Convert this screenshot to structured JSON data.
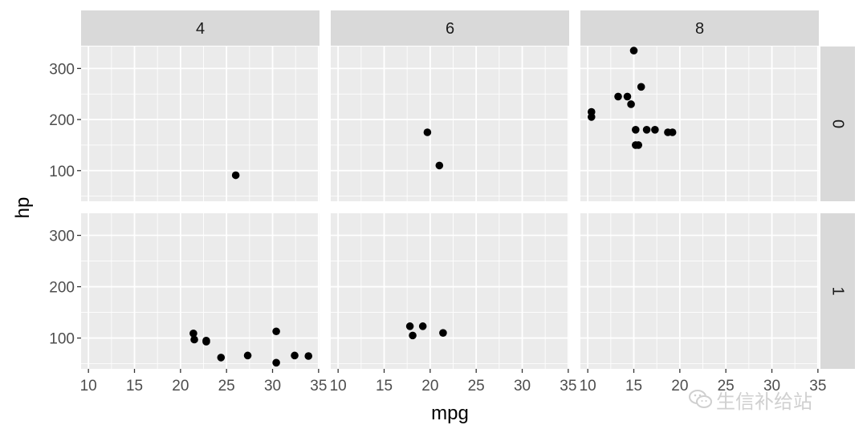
{
  "chart_data": {
    "type": "scatter",
    "facet_layout": "grid",
    "column_facets": [
      "4",
      "6",
      "8"
    ],
    "row_facets": [
      "0",
      "1"
    ],
    "xlabel": "mpg",
    "ylabel": "hp",
    "xlim": [
      9.2,
      35.1
    ],
    "ylim": [
      40,
      343
    ],
    "x_ticks": [
      10,
      15,
      20,
      25,
      30,
      35
    ],
    "x_tick_labels": [
      "10",
      "15",
      "20",
      "25",
      "30",
      "35"
    ],
    "y_ticks": [
      100,
      200,
      300
    ],
    "y_tick_labels": [
      "100",
      "200",
      "300"
    ],
    "grid": true,
    "point_color": "#000000",
    "panel_background": "#ebebeb",
    "strip_background": "#d9d9d9",
    "panels": [
      {
        "row": "0",
        "col": "4",
        "points": [
          [
            26.0,
            91
          ]
        ]
      },
      {
        "row": "0",
        "col": "6",
        "points": [
          [
            19.7,
            175
          ],
          [
            21.0,
            110
          ]
        ]
      },
      {
        "row": "0",
        "col": "8",
        "points": [
          [
            10.4,
            215
          ],
          [
            10.4,
            205
          ],
          [
            13.3,
            245
          ],
          [
            14.3,
            245
          ],
          [
            14.7,
            230
          ],
          [
            15.0,
            335
          ],
          [
            15.2,
            180
          ],
          [
            15.2,
            150
          ],
          [
            15.5,
            150
          ],
          [
            15.8,
            264
          ],
          [
            16.4,
            180
          ],
          [
            17.3,
            180
          ],
          [
            18.7,
            175
          ],
          [
            19.2,
            175
          ]
        ]
      },
      {
        "row": "1",
        "col": "4",
        "points": [
          [
            21.4,
            109
          ],
          [
            21.5,
            97
          ],
          [
            22.8,
            95
          ],
          [
            22.8,
            93
          ],
          [
            24.4,
            62
          ],
          [
            27.3,
            66
          ],
          [
            30.4,
            113
          ],
          [
            30.4,
            52
          ],
          [
            32.4,
            66
          ],
          [
            33.9,
            65
          ]
        ]
      },
      {
        "row": "1",
        "col": "6",
        "points": [
          [
            17.8,
            123
          ],
          [
            18.1,
            105
          ],
          [
            19.2,
            123
          ],
          [
            21.4,
            110
          ]
        ]
      },
      {
        "row": "1",
        "col": "8",
        "points": []
      }
    ]
  },
  "watermark": {
    "text": "生信补给站",
    "icon": "wechat-logo-icon"
  }
}
